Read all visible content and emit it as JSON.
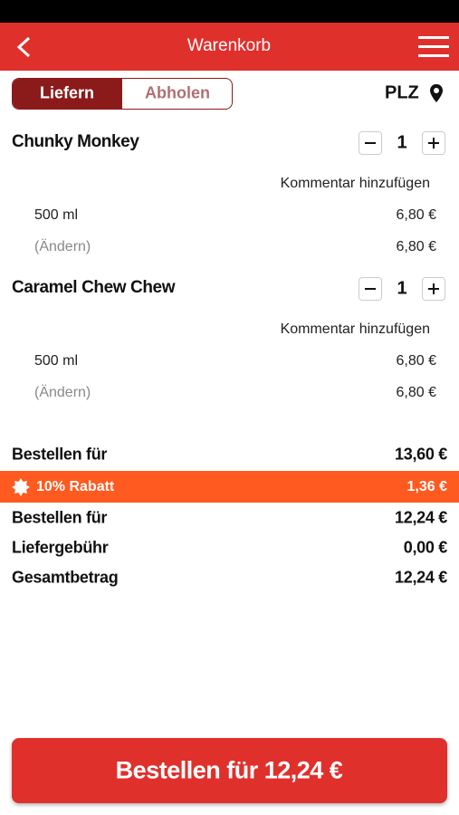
{
  "header": {
    "title": "Warenkorb"
  },
  "toggle": {
    "options": [
      "Liefern",
      "Abholen"
    ],
    "location": "PLZ"
  },
  "items": [
    {
      "name": "Chunky Monkey",
      "quantity": 1,
      "comment": "Kommentar hinzufügen",
      "size": "500 ml",
      "size_price": "6,80 €",
      "change": "(Ändern)",
      "change_price": "6,80 €"
    },
    {
      "name": "Caramel Chew Chew",
      "quantity": 1,
      "comment": "Kommentar hinzufügen",
      "size": "500 ml",
      "size_price": "6,80 €",
      "change": "(Ändern)",
      "change_price": "6,80 €"
    }
  ],
  "summary": {
    "subtotal": {
      "label": "Bestellen für",
      "value": "13,60 €"
    },
    "discount": {
      "label": "10% Rabatt",
      "value": "1,36 €"
    },
    "after_discount": {
      "label": "Bestellen für",
      "value": "12,24 €"
    },
    "delivery_fee": {
      "label": "Liefergebühr",
      "value": "0,00 €"
    },
    "total": {
      "label": "Gesamtbetrag",
      "value": "12,24 €"
    }
  },
  "button": {
    "label": "Bestellen für 12,24 €"
  }
}
